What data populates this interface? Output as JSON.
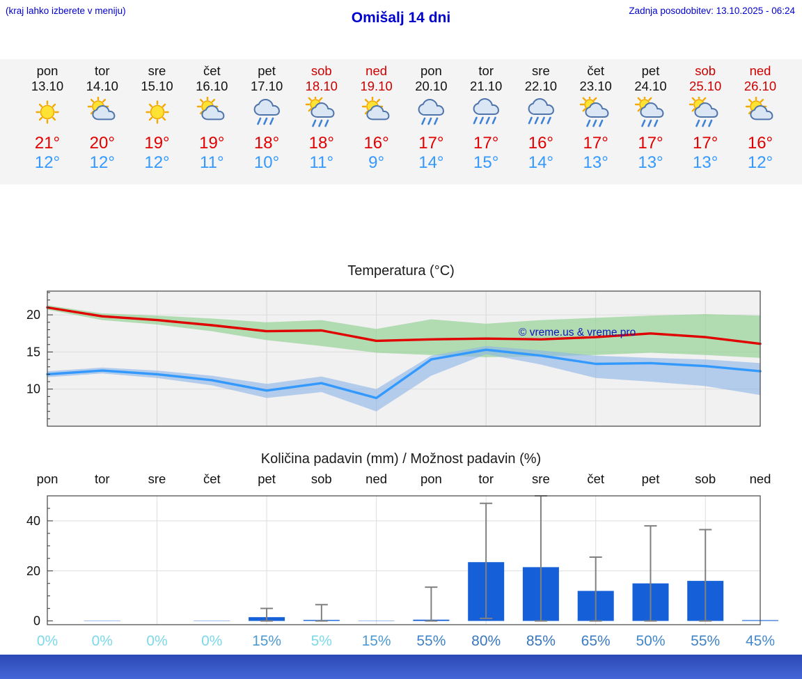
{
  "header": {
    "left_note": "(kraj lahko izberete v meniju)",
    "title": "Omišalj 14 dni",
    "updated": "Zadnja posodobitev: 13.10.2025 - 06:24"
  },
  "forecast": {
    "days": [
      {
        "name": "pon",
        "date": "13.10",
        "icon": "sun",
        "tmax": "21°",
        "tmin": "12°",
        "weekend": false
      },
      {
        "name": "tor",
        "date": "14.10",
        "icon": "sun-cloud",
        "tmax": "20°",
        "tmin": "12°",
        "weekend": false
      },
      {
        "name": "sre",
        "date": "15.10",
        "icon": "sun",
        "tmax": "19°",
        "tmin": "12°",
        "weekend": false
      },
      {
        "name": "čet",
        "date": "16.10",
        "icon": "sun-cloud",
        "tmax": "19°",
        "tmin": "11°",
        "weekend": false
      },
      {
        "name": "pet",
        "date": "17.10",
        "icon": "cloud-rain",
        "tmax": "18°",
        "tmin": "10°",
        "weekend": false
      },
      {
        "name": "sob",
        "date": "18.10",
        "icon": "sun-cloud-rain",
        "tmax": "18°",
        "tmin": "11°",
        "weekend": true
      },
      {
        "name": "ned",
        "date": "19.10",
        "icon": "sun-cloud",
        "tmax": "16°",
        "tmin": "9°",
        "weekend": true
      },
      {
        "name": "pon",
        "date": "20.10",
        "icon": "cloud-rain",
        "tmax": "17°",
        "tmin": "14°",
        "weekend": false
      },
      {
        "name": "tor",
        "date": "21.10",
        "icon": "cloud-rain-heavy",
        "tmax": "17°",
        "tmin": "15°",
        "weekend": false
      },
      {
        "name": "sre",
        "date": "22.10",
        "icon": "cloud-rain-heavy",
        "tmax": "16°",
        "tmin": "14°",
        "weekend": false
      },
      {
        "name": "čet",
        "date": "23.10",
        "icon": "sun-cloud-rain",
        "tmax": "17°",
        "tmin": "13°",
        "weekend": false
      },
      {
        "name": "pet",
        "date": "24.10",
        "icon": "sun-cloud-rain",
        "tmax": "17°",
        "tmin": "13°",
        "weekend": false
      },
      {
        "name": "sob",
        "date": "25.10",
        "icon": "sun-cloud-rain",
        "tmax": "17°",
        "tmin": "13°",
        "weekend": true
      },
      {
        "name": "ned",
        "date": "26.10",
        "icon": "sun-cloud",
        "tmax": "16°",
        "tmin": "12°",
        "weekend": true
      }
    ]
  },
  "chart_data": [
    {
      "type": "line",
      "title": "Temperatura (°C)",
      "x_labels": [
        "pon",
        "tor",
        "sre",
        "čet",
        "pet",
        "sob",
        "ned",
        "pon",
        "tor",
        "sre",
        "čet",
        "pet",
        "sob",
        "ned"
      ],
      "ylim": [
        5,
        23.2
      ],
      "yticks": [
        10,
        15,
        20
      ],
      "grid_x_indices": [
        2,
        4,
        6,
        8,
        10,
        12
      ],
      "watermark": "© vreme.us & vreme.pro",
      "series": [
        {
          "name": "max-temp",
          "color": "#e00000",
          "values": [
            21.0,
            19.8,
            19.3,
            18.6,
            17.8,
            17.9,
            16.5,
            16.7,
            16.8,
            16.7,
            17.0,
            17.5,
            17.0,
            16.1
          ]
        },
        {
          "name": "min-temp",
          "color": "#3399ff",
          "values": [
            12.0,
            12.5,
            12.0,
            11.2,
            9.8,
            10.8,
            8.8,
            14.0,
            15.3,
            14.5,
            13.4,
            13.5,
            13.1,
            12.4
          ]
        }
      ],
      "bands": [
        {
          "name": "max-temp-range",
          "color": "#8fcf8f",
          "opacity": 0.65,
          "upper": [
            21.3,
            20.2,
            19.9,
            19.5,
            19.0,
            19.3,
            18.1,
            19.4,
            18.8,
            19.3,
            19.6,
            19.9,
            20.1,
            19.9
          ],
          "lower": [
            20.7,
            19.3,
            18.7,
            17.8,
            16.6,
            15.8,
            14.9,
            14.6,
            14.3,
            14.4,
            14.6,
            14.9,
            14.6,
            14.2
          ]
        },
        {
          "name": "min-temp-range",
          "color": "#8ab4e8",
          "opacity": 0.6,
          "upper": [
            12.4,
            12.9,
            12.5,
            11.8,
            10.7,
            11.7,
            10.0,
            14.5,
            15.8,
            15.2,
            14.5,
            14.2,
            14.0,
            13.5
          ],
          "lower": [
            11.6,
            12.1,
            11.5,
            10.5,
            8.8,
            9.6,
            7.0,
            11.8,
            14.7,
            13.3,
            11.5,
            11.0,
            10.4,
            9.2
          ]
        }
      ]
    },
    {
      "type": "bar",
      "title": "Količina padavin (mm) / Možnost padavin (%)",
      "x_labels": [
        "pon",
        "tor",
        "sre",
        "čet",
        "pet",
        "sob",
        "ned",
        "pon",
        "tor",
        "sre",
        "čet",
        "pet",
        "sob",
        "ned"
      ],
      "ylim": [
        -1.5,
        50
      ],
      "yticks": [
        0,
        20,
        40
      ],
      "grid_x_indices": [
        2,
        4,
        6,
        8,
        10,
        12
      ],
      "bar_color": "#1560d8",
      "values": [
        0,
        0.1,
        0,
        0.1,
        1.5,
        0.4,
        0.1,
        0.5,
        23.5,
        21.5,
        12,
        15,
        16,
        0.3
      ],
      "whisker_low": [
        0,
        0,
        0,
        0,
        0,
        0,
        0,
        0,
        1,
        0,
        0,
        0,
        0,
        0
      ],
      "whisker_high": [
        0,
        0,
        0,
        0,
        5,
        6.5,
        0,
        13.5,
        47,
        50,
        25.5,
        38,
        36.5,
        0
      ],
      "probabilities": [
        {
          "label": "0%",
          "color": "#7cd9e8"
        },
        {
          "label": "0%",
          "color": "#7cd9e8"
        },
        {
          "label": "0%",
          "color": "#7cd9e8"
        },
        {
          "label": "0%",
          "color": "#7cd9e8"
        },
        {
          "label": "15%",
          "color": "#4e9ad0"
        },
        {
          "label": "5%",
          "color": "#7cd9e8"
        },
        {
          "label": "15%",
          "color": "#4e9ad0"
        },
        {
          "label": "55%",
          "color": "#3f83c6"
        },
        {
          "label": "80%",
          "color": "#3876c0"
        },
        {
          "label": "85%",
          "color": "#3674bf"
        },
        {
          "label": "65%",
          "color": "#3b7cc3"
        },
        {
          "label": "50%",
          "color": "#4187c8"
        },
        {
          "label": "55%",
          "color": "#3f83c6"
        },
        {
          "label": "45%",
          "color": "#4489c9"
        }
      ]
    }
  ],
  "colors": {
    "header_blue": "#0000cc",
    "weekday": "#111111",
    "weekend": "#cc0000",
    "temp_max": "#e00000",
    "temp_min": "#3399ff",
    "strip_bg": "#f4f4f4",
    "footer_top": "#2b4ab6",
    "footer_bottom": "#4466d6"
  }
}
